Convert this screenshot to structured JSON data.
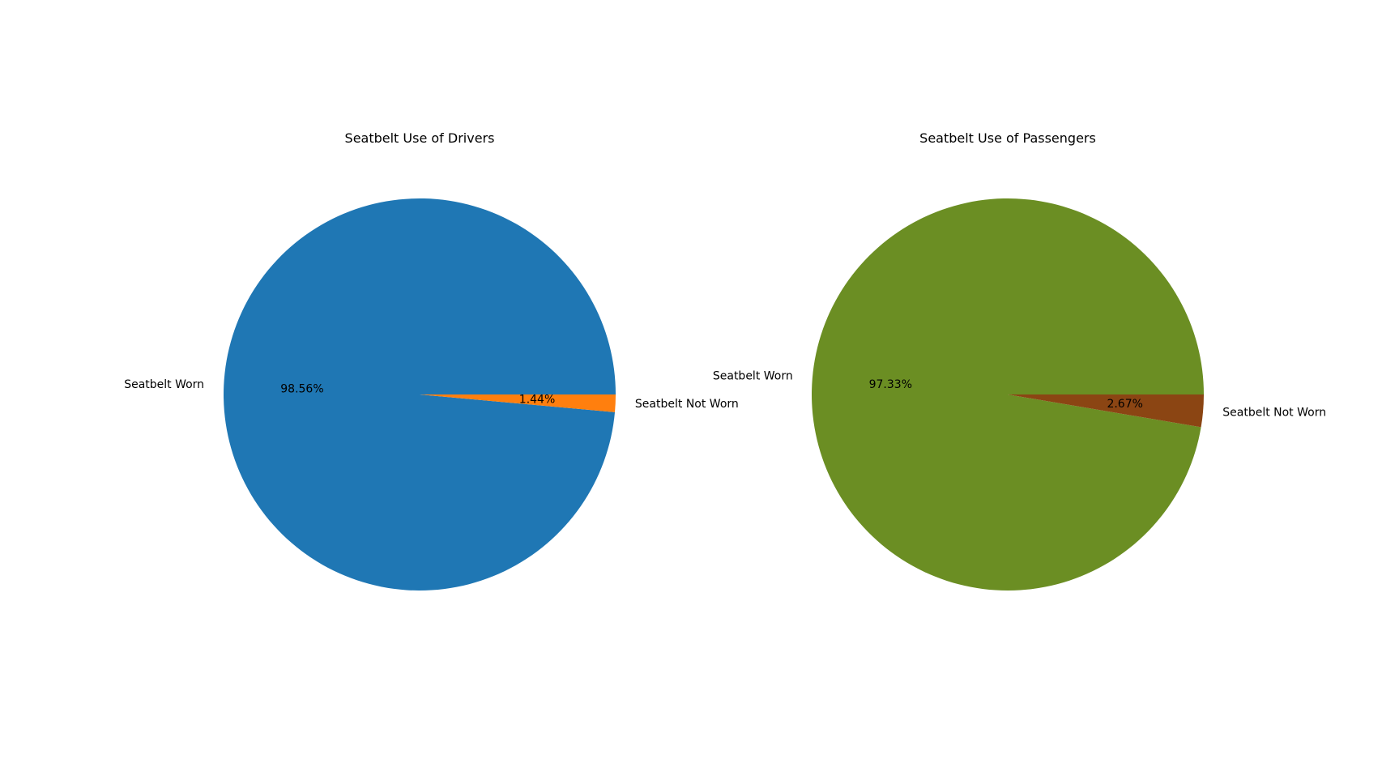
{
  "chart_data": [
    {
      "type": "pie",
      "title": "Seatbelt Use of Drivers",
      "categories": [
        "Seatbelt Worn",
        "Seatbelt Not Worn"
      ],
      "values": [
        98.56,
        1.44
      ],
      "value_labels": [
        "98.56%",
        "1.44%"
      ],
      "colors": [
        "#1f77b4",
        "#ff7f0e"
      ],
      "start_angle_deg": 0,
      "direction": "counterclockwise"
    },
    {
      "type": "pie",
      "title": "Seatbelt Use of Passengers",
      "categories": [
        "Seatbelt Worn",
        "Seatbelt Not Worn"
      ],
      "values": [
        97.33,
        2.67
      ],
      "value_labels": [
        "97.33%",
        "2.67%"
      ],
      "colors": [
        "#6b8e23",
        "#8b4513"
      ],
      "start_angle_deg": 0,
      "direction": "counterclockwise"
    }
  ]
}
